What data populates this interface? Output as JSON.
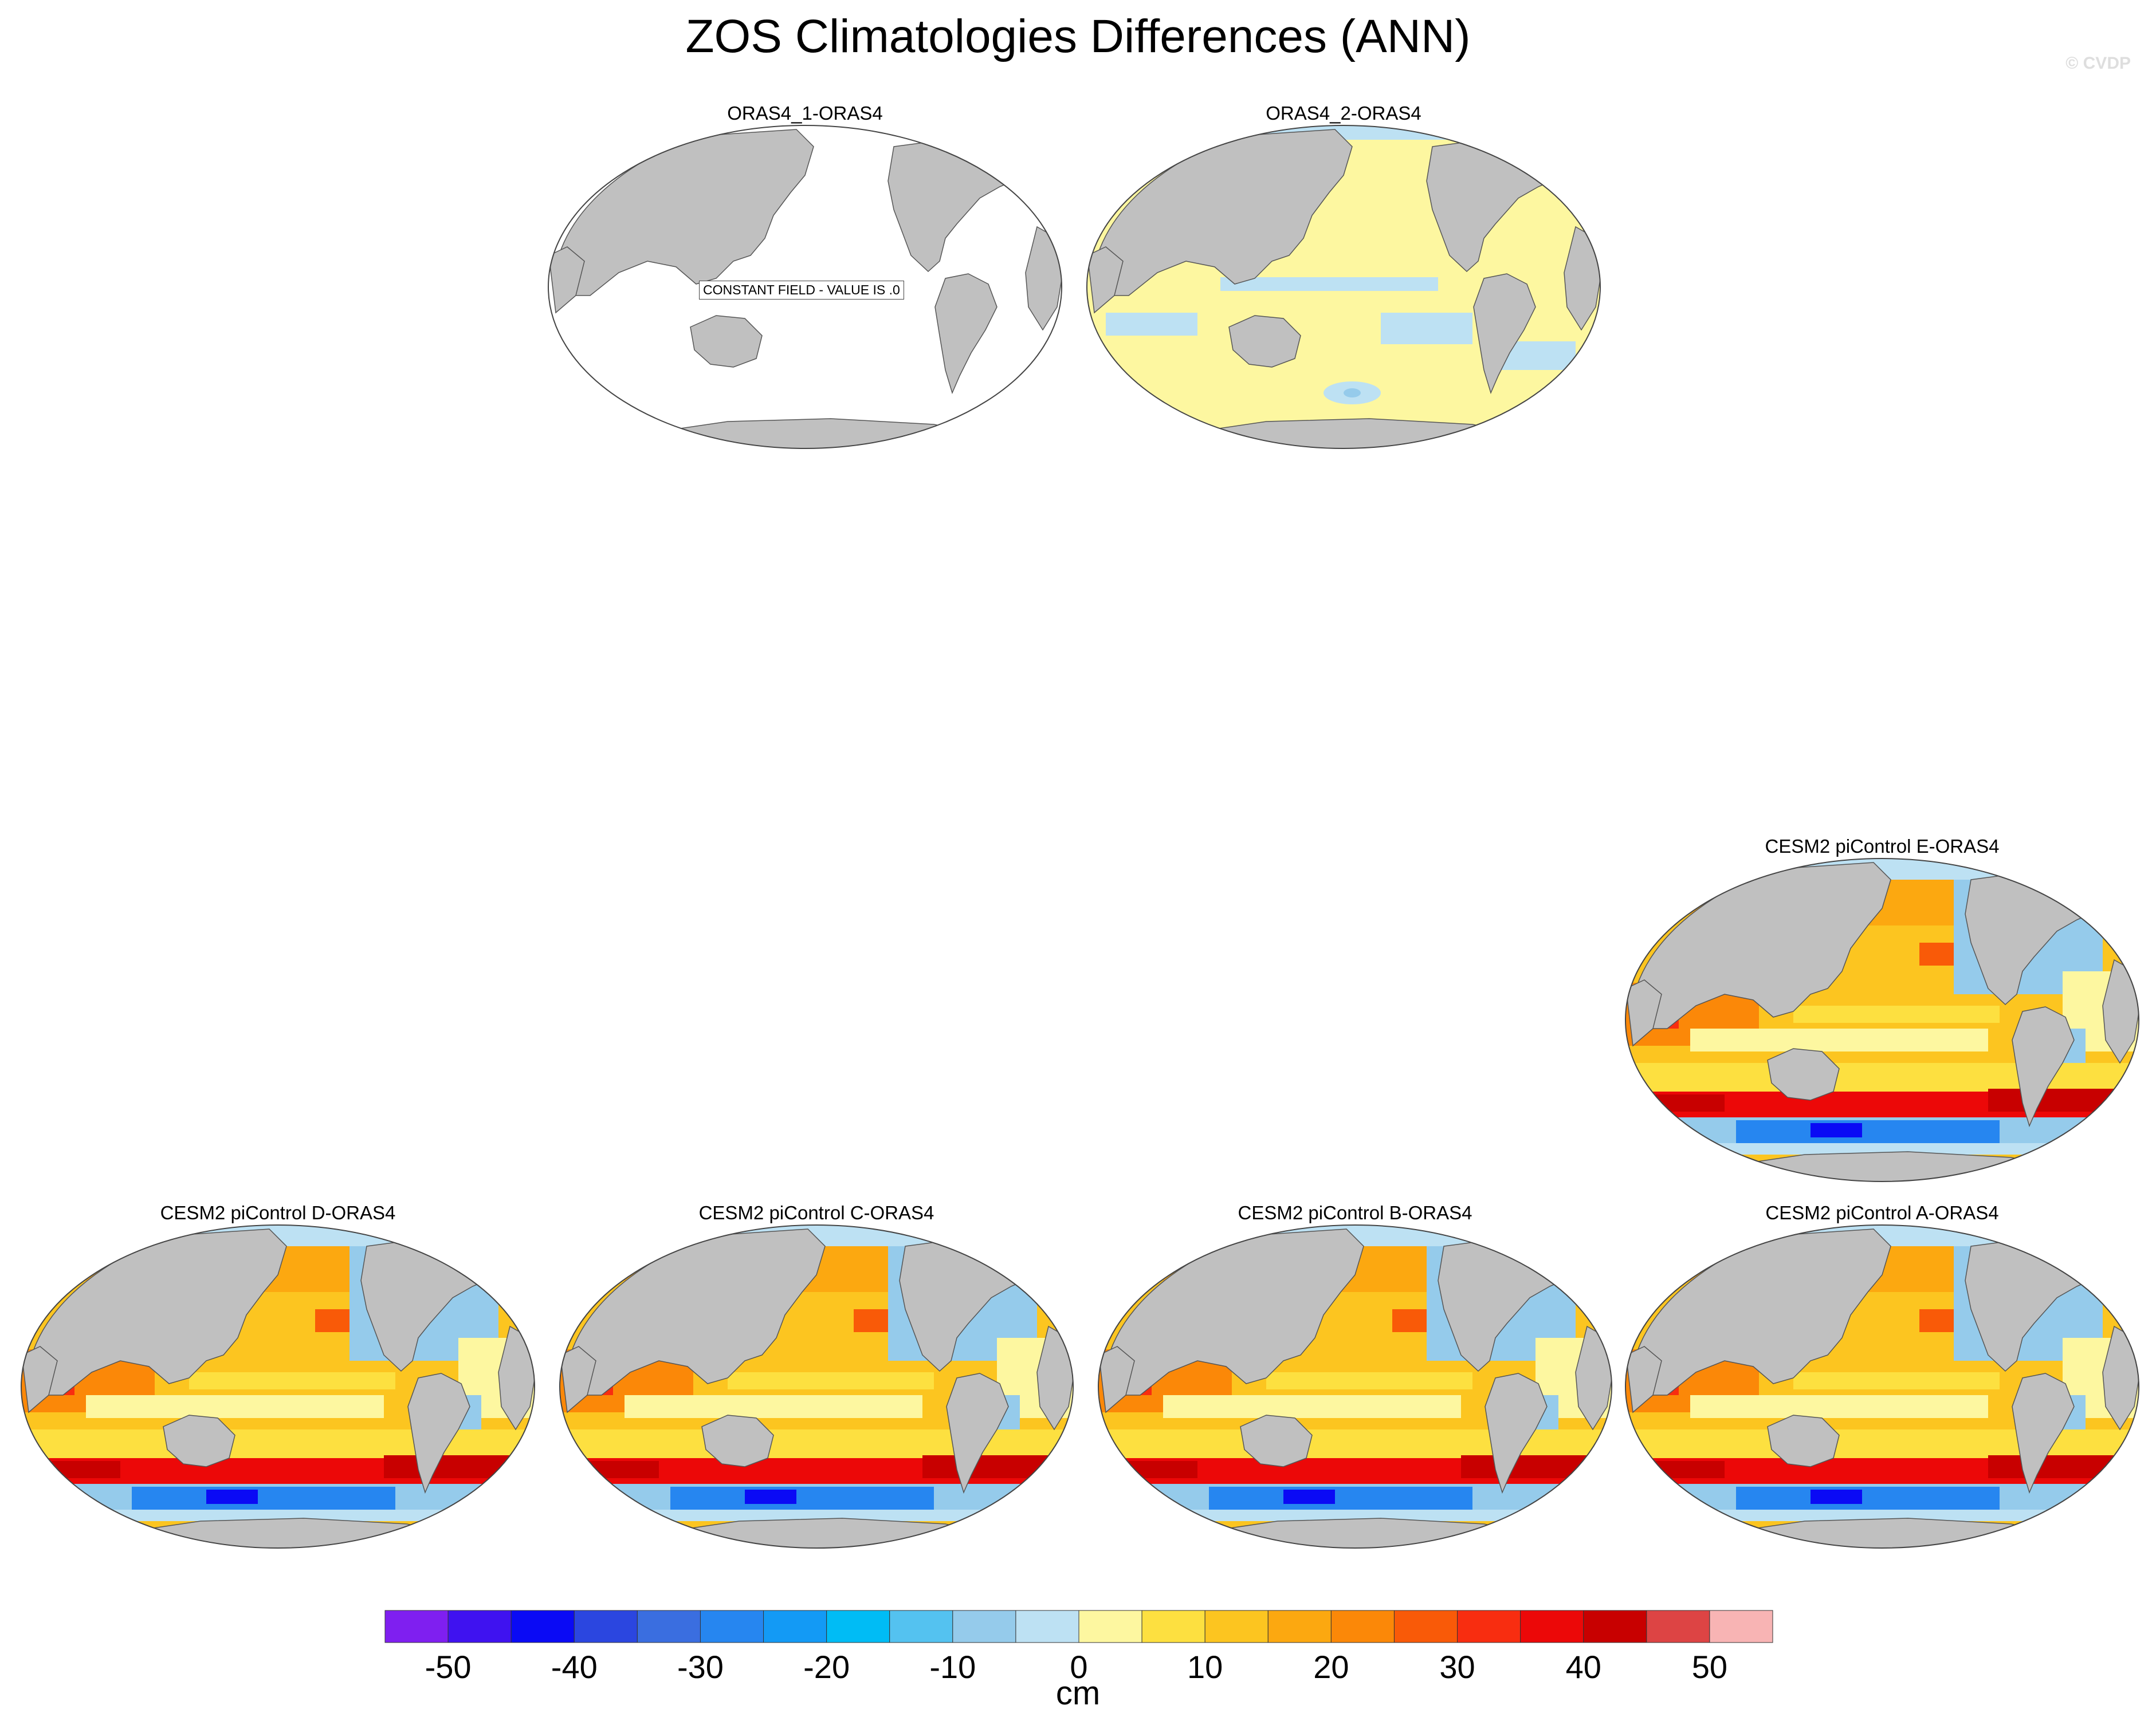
{
  "title": "ZOS Climatologies Differences (ANN)",
  "watermark": "© CVDP",
  "panels": [
    {
      "title": "ORAS4_1-ORAS4",
      "style": "constant",
      "note": "CONSTANT FIELD - VALUE IS .0"
    },
    {
      "title": "ORAS4_2-ORAS4",
      "style": "small"
    },
    {
      "title": "CESM2 piControl E-ORAS4",
      "style": "model"
    },
    {
      "title": "CESM2 piControl D-ORAS4",
      "style": "model"
    },
    {
      "title": "CESM2 piControl C-ORAS4",
      "style": "model"
    },
    {
      "title": "CESM2 piControl B-ORAS4",
      "style": "model"
    },
    {
      "title": "CESM2 piControl A-ORAS4",
      "style": "model"
    }
  ],
  "colors": {
    "land": "#c0c0c0",
    "levels": [
      "#7f1ff0",
      "#3f12f0",
      "#0a0af5",
      "#2b46e0",
      "#3a6ee0",
      "#2686f0",
      "#139af5",
      "#00bcf5",
      "#54c2f0",
      "#95cbeb",
      "#bde1f3",
      "#fdf7a0",
      "#fde040",
      "#fcc520",
      "#fca810",
      "#fb8808",
      "#f95a08",
      "#f82d10",
      "#ec0808",
      "#c80000",
      "#dd4444",
      "#f8b4b4"
    ]
  },
  "chart_data": {
    "type": "heatmap",
    "variable": "ZOS",
    "units": "cm",
    "colorbar": {
      "tick_labels": [
        "-50",
        "-40",
        "-30",
        "-20",
        "-10",
        "0",
        "10",
        "20",
        "30",
        "40",
        "50"
      ],
      "tick_values": [
        -50,
        -40,
        -30,
        -20,
        -10,
        0,
        10,
        20,
        30,
        40,
        50
      ],
      "level_step": 5,
      "range": [
        -55,
        55
      ],
      "unit_label": "cm"
    },
    "fields": [
      {
        "panel": "ORAS4_1-ORAS4",
        "constant_value": 0
      },
      {
        "panel": "ORAS4_2-ORAS4",
        "range": [
          -5,
          5
        ]
      },
      {
        "panel": "CESM2 piControl E-ORAS4",
        "range": [
          -55,
          55
        ]
      },
      {
        "panel": "CESM2 piControl D-ORAS4",
        "range": [
          -55,
          55
        ]
      },
      {
        "panel": "CESM2 piControl C-ORAS4",
        "range": [
          -55,
          55
        ]
      },
      {
        "panel": "CESM2 piControl B-ORAS4",
        "range": [
          -55,
          55
        ]
      },
      {
        "panel": "CESM2 piControl A-ORAS4",
        "range": [
          -55,
          55
        ]
      }
    ]
  }
}
